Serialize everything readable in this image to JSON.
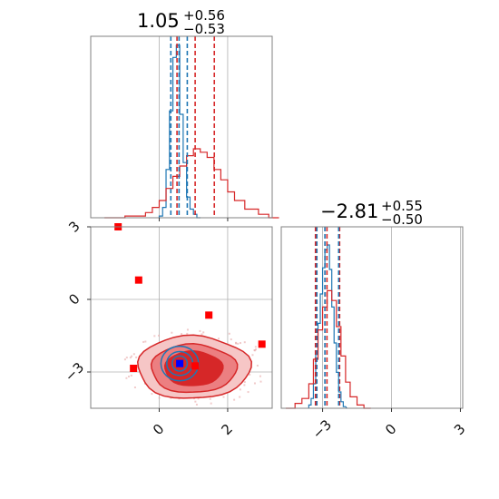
{
  "colors": {
    "red": "#d62728",
    "blue": "#1f77b4",
    "fill_light": "#f6c6c6",
    "fill_mid": "#ec7f81",
    "fill_dark": "#d62728",
    "marker_red": "#ff0000",
    "marker_blue": "#0000ff"
  },
  "titles": {
    "param1": {
      "median": "1.05",
      "plus": "+0.56",
      "minus": "−0.53"
    },
    "param2": {
      "median": "−2.81",
      "plus": "+0.55",
      "minus": "−0.50"
    }
  },
  "chart_data": [
    {
      "type": "histogram",
      "panel": "top-left marginal",
      "xlim": [
        -2.0,
        3.3
      ],
      "grid": true,
      "series": [
        {
          "color": "blue",
          "x": [
            0.0,
            0.1,
            0.2,
            0.3,
            0.4,
            0.5,
            0.6,
            0.7,
            0.8,
            0.9,
            1.0,
            1.1
          ],
          "values": [
            0.01,
            0.06,
            0.28,
            0.62,
            0.93,
            1.0,
            0.6,
            0.32,
            0.12,
            0.05,
            0.02,
            0.0
          ]
        },
        {
          "color": "red",
          "x": [
            -1.6,
            -1.0,
            -0.4,
            -0.2,
            0.0,
            0.2,
            0.4,
            0.6,
            0.8,
            1.0,
            1.2,
            1.4,
            1.6,
            1.8,
            2.0,
            2.2,
            2.5,
            2.9,
            3.2
          ],
          "values": [
            0.0,
            0.01,
            0.03,
            0.06,
            0.1,
            0.17,
            0.24,
            0.3,
            0.36,
            0.4,
            0.38,
            0.35,
            0.28,
            0.22,
            0.15,
            0.1,
            0.05,
            0.02,
            0.0
          ]
        }
      ],
      "quantiles": {
        "red": [
          0.52,
          1.05,
          1.61
        ],
        "blue": [
          0.34,
          0.58,
          0.82
        ]
      }
    },
    {
      "type": "contour",
      "panel": "bottom-left 2D",
      "xlim": [
        -2.0,
        3.3
      ],
      "ylim": [
        -4.5,
        3.0
      ],
      "xticks": [
        "0",
        "2"
      ],
      "yticks": [
        "−3",
        "0",
        "3"
      ],
      "grid": true,
      "center": [
        1.05,
        -2.81
      ],
      "blue_center": [
        0.6,
        -2.65
      ],
      "red_points": [
        [
          -1.2,
          3.0
        ],
        [
          -0.6,
          0.8
        ],
        [
          1.45,
          -0.65
        ],
        [
          3.0,
          -1.85
        ],
        [
          -0.75,
          -2.85
        ],
        [
          1.05,
          -2.75
        ]
      ],
      "blue_points": [
        [
          0.6,
          -2.65
        ]
      ]
    },
    {
      "type": "histogram",
      "panel": "bottom-right marginal",
      "xlim": [
        -4.8,
        3.1
      ],
      "xticks": [
        "−3",
        "0",
        "3"
      ],
      "grid": true,
      "series": [
        {
          "color": "blue",
          "x": [
            -3.6,
            -3.5,
            -3.4,
            -3.3,
            -3.2,
            -3.1,
            -3.0,
            -2.9,
            -2.8,
            -2.7,
            -2.6,
            -2.5,
            -2.4,
            -2.3,
            -2.2,
            -2.1
          ],
          "values": [
            0.02,
            0.06,
            0.15,
            0.33,
            0.52,
            0.7,
            0.86,
            0.97,
            1.0,
            0.85,
            0.62,
            0.4,
            0.22,
            0.1,
            0.04,
            0.01
          ]
        },
        {
          "color": "red",
          "x": [
            -4.6,
            -4.2,
            -3.9,
            -3.6,
            -3.4,
            -3.2,
            -3.0,
            -2.8,
            -2.6,
            -2.4,
            -2.2,
            -2.0,
            -1.8,
            -1.5,
            -1.2
          ],
          "values": [
            0.0,
            0.03,
            0.06,
            0.15,
            0.3,
            0.48,
            0.62,
            0.72,
            0.66,
            0.5,
            0.32,
            0.16,
            0.07,
            0.02,
            0.0
          ]
        }
      ],
      "quantiles": {
        "red": [
          -3.31,
          -2.81,
          -2.26
        ],
        "blue": [
          -3.25,
          -2.9,
          -2.3
        ]
      }
    }
  ]
}
